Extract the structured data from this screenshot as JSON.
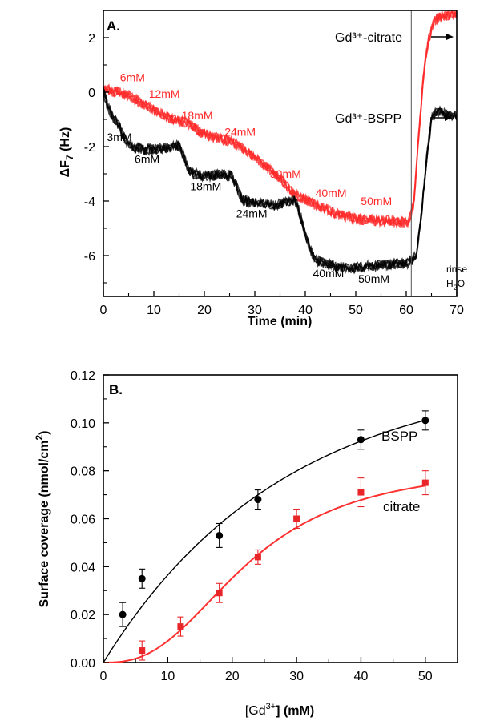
{
  "chart_data": [
    {
      "type": "line",
      "panel_label": "A.",
      "xlabel": "Time (min)",
      "ylabel_main": "ΔF",
      "ylabel_sub": "7",
      "ylabel_unit": " (Hz)",
      "xlim": [
        0,
        70
      ],
      "ylim": [
        -7.5,
        3
      ],
      "x_ticks": [
        0,
        10,
        20,
        30,
        40,
        50,
        60,
        70
      ],
      "y_ticks": [
        2,
        0,
        -2,
        -4,
        -6
      ],
      "vline_x": 61,
      "colors": {
        "citrate": "#ff2a2a",
        "bspp": "#000000"
      },
      "series": [
        {
          "name": "Gd3+-citrate",
          "points": [
            [
              0,
              0
            ],
            [
              0.5,
              0.15
            ],
            [
              1.5,
              0.05
            ],
            [
              3,
              0.0
            ],
            [
              5,
              -0.1
            ],
            [
              7,
              -0.35
            ],
            [
              9,
              -0.55
            ],
            [
              11,
              -0.75
            ],
            [
              13,
              -0.95
            ],
            [
              15,
              -1.05
            ],
            [
              17,
              -1.15
            ],
            [
              19,
              -1.45
            ],
            [
              21,
              -1.6
            ],
            [
              23,
              -1.7
            ],
            [
              25,
              -1.8
            ],
            [
              27,
              -2.0
            ],
            [
              29,
              -2.25
            ],
            [
              31,
              -2.55
            ],
            [
              33,
              -2.85
            ],
            [
              35,
              -3.15
            ],
            [
              37,
              -3.6
            ],
            [
              38,
              -3.75
            ],
            [
              40,
              -3.95
            ],
            [
              42,
              -4.15
            ],
            [
              44,
              -4.3
            ],
            [
              46,
              -4.45
            ],
            [
              48,
              -4.55
            ],
            [
              50,
              -4.65
            ],
            [
              52,
              -4.7
            ],
            [
              55,
              -4.72
            ],
            [
              58,
              -4.75
            ],
            [
              60.5,
              -4.75
            ],
            [
              61.5,
              -4.1
            ],
            [
              62.5,
              -1.5
            ],
            [
              63.5,
              0.8
            ],
            [
              64.5,
              2.0
            ],
            [
              65.5,
              2.6
            ],
            [
              67,
              2.8
            ],
            [
              70,
              2.9
            ]
          ]
        },
        {
          "name": "Gd3+-BSPP",
          "points": [
            [
              0,
              0
            ],
            [
              0.5,
              -0.3
            ],
            [
              1.5,
              -0.8
            ],
            [
              3,
              -1.2
            ],
            [
              4,
              -1.6
            ],
            [
              5,
              -1.95
            ],
            [
              6,
              -2.05
            ],
            [
              8,
              -2.1
            ],
            [
              10,
              -2.1
            ],
            [
              12,
              -2.05
            ],
            [
              14,
              -2.0
            ],
            [
              15,
              -1.95
            ],
            [
              16,
              -2.4
            ],
            [
              17,
              -2.9
            ],
            [
              18,
              -3.0
            ],
            [
              20,
              -3.1
            ],
            [
              22,
              -3.05
            ],
            [
              24,
              -3.05
            ],
            [
              25.5,
              -3.1
            ],
            [
              26.5,
              -3.5
            ],
            [
              27.5,
              -3.95
            ],
            [
              29,
              -4.05
            ],
            [
              31,
              -4.1
            ],
            [
              33,
              -4.15
            ],
            [
              35,
              -4.1
            ],
            [
              37,
              -4.0
            ],
            [
              38,
              -4.0
            ],
            [
              39,
              -4.5
            ],
            [
              40,
              -5.2
            ],
            [
              41,
              -5.8
            ],
            [
              42,
              -6.15
            ],
            [
              44,
              -6.3
            ],
            [
              46,
              -6.4
            ],
            [
              48,
              -6.45
            ],
            [
              50,
              -6.45
            ],
            [
              52,
              -6.4
            ],
            [
              55,
              -6.35
            ],
            [
              58,
              -6.3
            ],
            [
              60,
              -6.3
            ],
            [
              61,
              -6.2
            ],
            [
              62,
              -6.0
            ],
            [
              63,
              -4.5
            ],
            [
              64,
              -2.5
            ],
            [
              65,
              -1.0
            ],
            [
              66,
              -0.7
            ],
            [
              68,
              -0.8
            ],
            [
              70,
              -0.85
            ]
          ]
        }
      ],
      "annotations_red": [
        {
          "text": "6mM",
          "x": 3.3,
          "y": 0.4
        },
        {
          "text": "12mM",
          "x": 9,
          "y": -0.2
        },
        {
          "text": "18mM",
          "x": 15.5,
          "y": -1.0
        },
        {
          "text": "24mM",
          "x": 24,
          "y": -1.6
        },
        {
          "text": "30mM",
          "x": 33,
          "y": -3.15
        },
        {
          "text": "40mM",
          "x": 42,
          "y": -3.85
        },
        {
          "text": "50mM",
          "x": 51,
          "y": -4.15
        }
      ],
      "annotations_black": [
        {
          "text": "3mM",
          "x": 0.7,
          "y": -1.8
        },
        {
          "text": "6mM",
          "x": 6.2,
          "y": -2.6
        },
        {
          "text": "18mM",
          "x": 17.2,
          "y": -3.6
        },
        {
          "text": "24mM",
          "x": 26.3,
          "y": -4.6
        },
        {
          "text": "40mM",
          "x": 41.5,
          "y": -6.8
        },
        {
          "text": "50mM",
          "x": 50.5,
          "y": -7.0
        }
      ],
      "labels": {
        "citrate": "Gd³⁺-citrate",
        "bspp": "Gd³⁺-BSPP",
        "rinse": "rinse",
        "h2o_h": "H",
        "h2o_sub": "2",
        "h2o_o": "O"
      }
    },
    {
      "type": "scatter",
      "panel_label": "B.",
      "xlabel_pre": "[Gd",
      "xlabel_sup": "3+",
      "xlabel_post": "] (mM)",
      "ylabel_main": "Surface coverage (nmol/cm",
      "ylabel_sup": "2",
      "ylabel_close": ")",
      "xlim": [
        0,
        55
      ],
      "ylim": [
        0,
        0.12
      ],
      "x_ticks": [
        0,
        10,
        20,
        30,
        40,
        50
      ],
      "y_ticks": [
        "0.00",
        "0.02",
        "0.04",
        "0.06",
        "0.08",
        "0.10",
        "0.12"
      ],
      "colors": {
        "bspp": "#000000",
        "citrate": "#e8262a",
        "citrate_fit": "#ff3030"
      },
      "series": [
        {
          "name": "BSPP",
          "marker": "circle",
          "x": [
            3,
            6,
            18,
            24,
            40,
            50
          ],
          "y": [
            0.02,
            0.035,
            0.053,
            0.068,
            0.093,
            0.101
          ],
          "err": [
            0.005,
            0.004,
            0.005,
            0.004,
            0.004,
            0.004
          ]
        },
        {
          "name": "citrate",
          "marker": "square",
          "x": [
            6,
            12,
            18,
            24,
            30,
            40,
            50
          ],
          "y": [
            0.005,
            0.015,
            0.029,
            0.044,
            0.06,
            0.071,
            0.075
          ],
          "err": [
            0.004,
            0.004,
            0.004,
            0.003,
            0.004,
            0.006,
            0.005
          ]
        }
      ],
      "labels": {
        "bspp": "BSPP",
        "citrate": "citrate"
      }
    }
  ]
}
